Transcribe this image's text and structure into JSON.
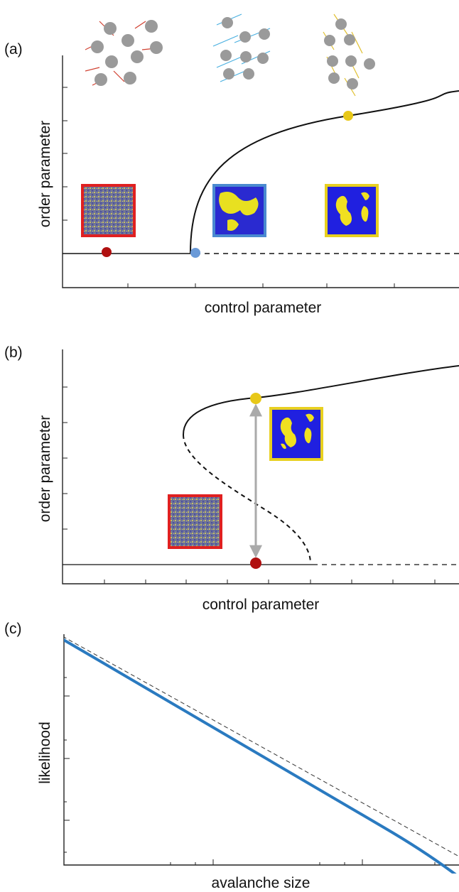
{
  "panels": [
    {
      "label": "(a)",
      "x_label": "control parameter",
      "y_label": "order parameter"
    },
    {
      "label": "(b)",
      "x_label": "control parameter",
      "y_label": "order parameter"
    },
    {
      "label": "(c)",
      "x_label": "avalanche size",
      "y_label": "likelihood"
    }
  ]
}
